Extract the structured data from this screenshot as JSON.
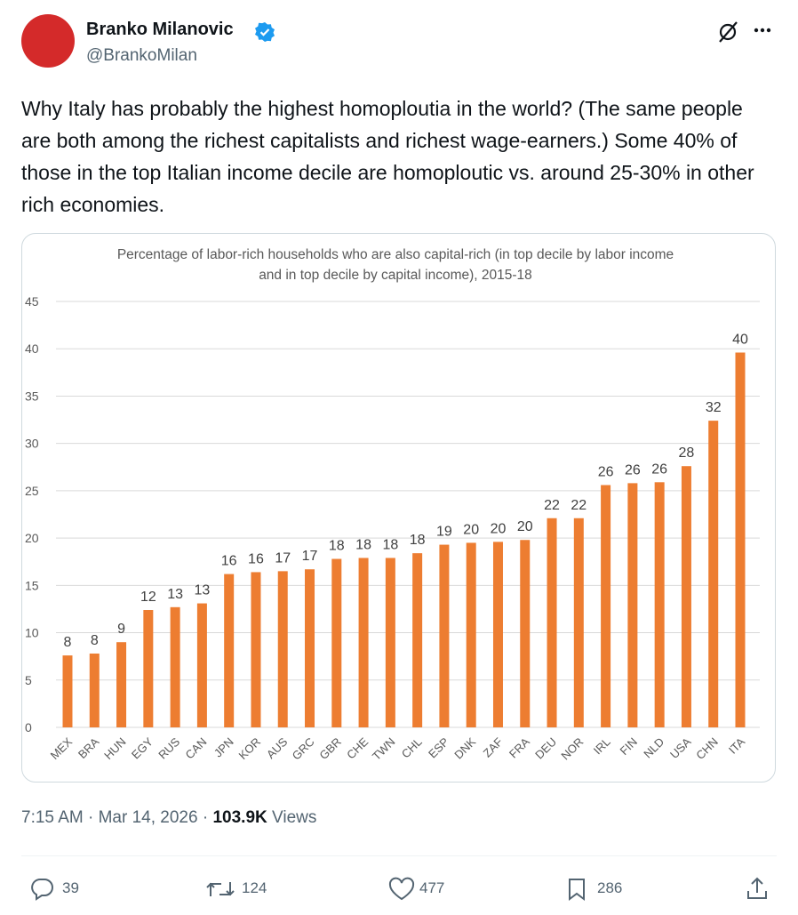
{
  "author": {
    "name": "Branko Milanovic",
    "handle": "@BrankoMilan"
  },
  "post_text": "Why Italy has probably the highest homoploutia in the world? (The same people are both among the richest capitalists and richest wage-earners.) Some 40% of those in the top Italian income decile are homoploutic vs. around 25-30% in other rich economies.",
  "chart_data": {
    "type": "bar",
    "title": "Percentage of labor-rich households who are also capital-rich (in top decile by labor income and in top decile by capital income), 2015-18",
    "categories": [
      "MEX",
      "BRA",
      "HUN",
      "EGY",
      "RUS",
      "CAN",
      "JPN",
      "KOR",
      "AUS",
      "GRC",
      "GBR",
      "CHE",
      "TWN",
      "CHL",
      "ESP",
      "DNK",
      "ZAF",
      "FRA",
      "DEU",
      "NOR",
      "IRL",
      "FIN",
      "NLD",
      "USA",
      "CHN",
      "ITA"
    ],
    "values": [
      7.6,
      7.8,
      9.0,
      12.4,
      12.7,
      13.1,
      16.2,
      16.4,
      16.5,
      16.7,
      17.8,
      17.9,
      17.9,
      18.4,
      19.3,
      19.5,
      19.6,
      19.8,
      22.1,
      22.1,
      25.6,
      25.8,
      25.9,
      27.6,
      32.4,
      39.6
    ],
    "value_labels": [
      "8",
      "8",
      "9",
      "12",
      "13",
      "13",
      "16",
      "16",
      "17",
      "17",
      "18",
      "18",
      "18",
      "18",
      "19",
      "20",
      "20",
      "20",
      "22",
      "22",
      "26",
      "26",
      "26",
      "28",
      "32",
      "40"
    ],
    "color": "#ed7d31",
    "ylim": [
      0,
      45
    ],
    "yticks": [
      0,
      5,
      10,
      15,
      20,
      25,
      30,
      35,
      40,
      45
    ],
    "grid": true
  },
  "meta": {
    "time": "7:15 AM",
    "separator": "·",
    "date": "Mar 14, 2026",
    "views": "103.9K",
    "views_label": "Views"
  },
  "actions": {
    "replies": 39,
    "reposts": 124,
    "likes": 477,
    "bookmarks": 286
  }
}
